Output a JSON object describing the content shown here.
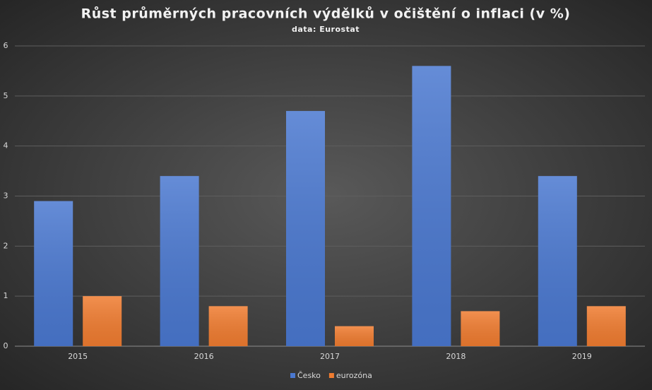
{
  "chart_data": {
    "type": "bar",
    "title": "Růst průměrných pracovních výdělků v očištění o inflaci (v %)",
    "subtitle": "data: Eurostat",
    "categories": [
      "2015",
      "2016",
      "2017",
      "2018",
      "2019"
    ],
    "series": [
      {
        "name": "Česko",
        "color": "#4a78d0",
        "values": [
          2.9,
          3.4,
          4.7,
          5.6,
          3.4
        ]
      },
      {
        "name": "eurozóna",
        "color": "#f07c30",
        "values": [
          1.0,
          0.8,
          0.4,
          0.7,
          0.8
        ]
      }
    ],
    "ylim": [
      0,
      6
    ],
    "yticks": [
      0,
      1,
      2,
      3,
      4,
      5,
      6
    ],
    "grid": true,
    "legend": "bottom"
  }
}
